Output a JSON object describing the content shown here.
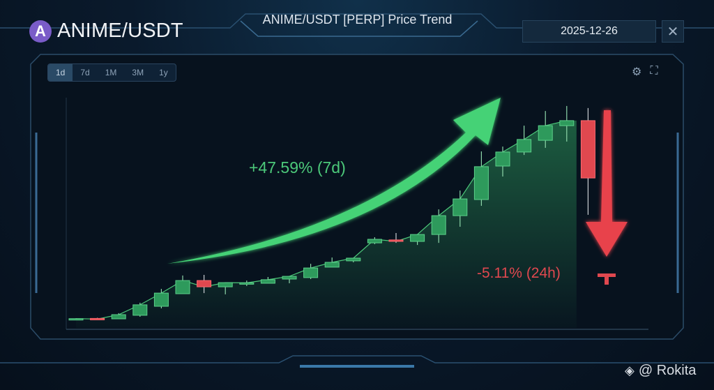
{
  "header": {
    "logo_letter": "A",
    "pair": "ANIME/USDT",
    "title": "ANIME/USDT [PERP] Price Trend",
    "date": "2025-12-26",
    "close_icon": "close-icon"
  },
  "toolbar": {
    "timeframes": [
      "1d",
      "7d",
      "1M",
      "3M",
      "1y"
    ],
    "active_timeframe": "1d",
    "icons": [
      "gear-icon",
      "fullscreen-icon"
    ]
  },
  "annotations": {
    "gain": "+47.59% (7d)",
    "loss": "-5.11% (24h)"
  },
  "watermark": "@ Rokita",
  "colors": {
    "up": "#2e9a5c",
    "down": "#e0484f",
    "up_text": "#4cc97a",
    "arrow_up": "#45d276"
  },
  "chart_data": {
    "type": "candlestick",
    "title": "ANIME/USDT [PERP] Price Trend",
    "xlabel": "",
    "ylabel": "",
    "ylim": [
      0,
      105
    ],
    "grid": false,
    "candles": [
      {
        "o": 1,
        "h": 1.3,
        "l": 0.7,
        "c": 1.1
      },
      {
        "o": 1.2,
        "h": 1.5,
        "l": 0.7,
        "c": 0.9
      },
      {
        "o": 1,
        "h": 3.7,
        "l": 1,
        "c": 3
      },
      {
        "o": 2.7,
        "h": 8.7,
        "l": 2,
        "c": 7.7
      },
      {
        "o": 7,
        "h": 15.3,
        "l": 6,
        "c": 13.3
      },
      {
        "o": 13,
        "h": 21.7,
        "l": 13,
        "c": 19.3
      },
      {
        "o": 19.3,
        "h": 22,
        "l": 13.3,
        "c": 16.3
      },
      {
        "o": 16.3,
        "h": 18.3,
        "l": 12.7,
        "c": 18.3
      },
      {
        "o": 18,
        "h": 19.3,
        "l": 16.7,
        "c": 18.2
      },
      {
        "o": 18,
        "h": 21,
        "l": 18,
        "c": 19.7
      },
      {
        "o": 20,
        "h": 21.3,
        "l": 18,
        "c": 21.3
      },
      {
        "o": 20.7,
        "h": 27.3,
        "l": 20,
        "c": 25.3
      },
      {
        "o": 25.7,
        "h": 30.3,
        "l": 25.7,
        "c": 28
      },
      {
        "o": 28.7,
        "h": 30,
        "l": 28,
        "c": 30
      },
      {
        "o": 37.3,
        "h": 40,
        "l": 36.7,
        "c": 39
      },
      {
        "o": 38.7,
        "h": 42,
        "l": 37.3,
        "c": 38
      },
      {
        "o": 38,
        "h": 41.3,
        "l": 36.3,
        "c": 41.3
      },
      {
        "o": 41.3,
        "h": 53.3,
        "l": 37.3,
        "c": 50.3
      },
      {
        "o": 50.3,
        "h": 62.3,
        "l": 45,
        "c": 58.3
      },
      {
        "o": 58,
        "h": 81,
        "l": 55,
        "c": 73.7
      },
      {
        "o": 74,
        "h": 83.3,
        "l": 69,
        "c": 80.7
      },
      {
        "o": 80.7,
        "h": 93.3,
        "l": 79.3,
        "c": 86.7
      },
      {
        "o": 86.3,
        "h": 100.3,
        "l": 82.7,
        "c": 93.3
      },
      {
        "o": 93.3,
        "h": 102.7,
        "l": 85.7,
        "c": 95.7
      },
      {
        "o": 95.7,
        "h": 101.7,
        "l": 50.7,
        "c": 68.3
      }
    ]
  }
}
